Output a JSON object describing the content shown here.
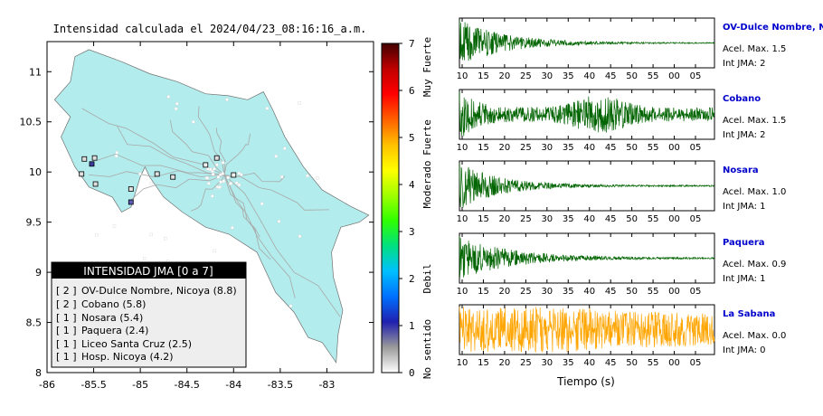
{
  "map": {
    "title": "Intensidad calculada el 2024/04/23_08:16:16_a.m.",
    "xlim": [
      -86,
      -82.5
    ],
    "ylim": [
      8,
      11.3
    ],
    "xticks": [
      "-86",
      "-85.5",
      "-85",
      "-84.5",
      "-84",
      "-83.5",
      "-83"
    ],
    "xtick_values": [
      -86,
      -85.5,
      -85,
      -84.5,
      -84,
      -83.5,
      -83
    ],
    "yticks": [
      "8",
      "8.5",
      "9",
      "9.5",
      "10",
      "10.5",
      "11"
    ],
    "ytick_values": [
      8,
      8.5,
      9,
      9.5,
      10,
      10.5,
      11
    ],
    "land_color": "#b3ecec",
    "stations": [
      {
        "lon": -85.52,
        "lat": 10.08,
        "jma": 2,
        "color": "#3c3ca0"
      },
      {
        "lon": -85.1,
        "lat": 9.7,
        "jma": 2,
        "color": "#5a5ab8"
      },
      {
        "lon": -85.6,
        "lat": 10.13,
        "jma": 1,
        "color": "#e0e0e0"
      },
      {
        "lon": -85.49,
        "lat": 10.14,
        "jma": 1,
        "color": "#e0e0e0"
      },
      {
        "lon": -85.63,
        "lat": 9.98,
        "jma": 1,
        "color": "#e0e0e0"
      },
      {
        "lon": -85.48,
        "lat": 9.88,
        "jma": 1,
        "color": "#e0e0e0"
      },
      {
        "lon": -85.1,
        "lat": 9.83,
        "jma": 1,
        "color": "#e0e0e0"
      },
      {
        "lon": -84.82,
        "lat": 9.98,
        "jma": 1,
        "color": "#e0e0e0"
      },
      {
        "lon": -84.65,
        "lat": 9.95,
        "jma": 1,
        "color": "#e0e0e0"
      },
      {
        "lon": -84.18,
        "lat": 10.14,
        "jma": 1,
        "color": "#e0e0e0"
      },
      {
        "lon": -84.3,
        "lat": 10.07,
        "jma": 0,
        "color": "#f0f0f0"
      },
      {
        "lon": -84.0,
        "lat": 9.97,
        "jma": 0,
        "color": "#f0f0f0"
      }
    ]
  },
  "legend": {
    "title": "INTENSIDAD JMA [0 a 7]",
    "rows": [
      {
        "int": "[ 2 ]",
        "label": "OV-Dulce Nombre, Nicoya (8.8)"
      },
      {
        "int": "[ 2 ]",
        "label": "Cobano (5.8)"
      },
      {
        "int": "[ 1 ]",
        "label": "Nosara (5.4)"
      },
      {
        "int": "[ 1 ]",
        "label": "Paquera (2.4)"
      },
      {
        "int": "[ 1 ]",
        "label": "Liceo Santa Cruz (2.5)"
      },
      {
        "int": "[ 1 ]",
        "label": "Hosp. Nicoya (4.2)"
      }
    ]
  },
  "colorbar": {
    "ticks": [
      "0",
      "1",
      "2",
      "3",
      "4",
      "5",
      "6",
      "7"
    ],
    "tick_values": [
      0,
      1,
      2,
      3,
      4,
      5,
      6,
      7
    ],
    "labels": [
      {
        "text": "No sentido",
        "value": 0.5
      },
      {
        "text": "Debil",
        "value": 2
      },
      {
        "text": "Moderado",
        "value": 4
      },
      {
        "text": "Fuerte",
        "value": 5
      },
      {
        "text": "Muy Fuerte",
        "value": 6.5
      }
    ],
    "stops": [
      "#ffffff",
      "#9a9a9a",
      "#2020b0",
      "#0070ff",
      "#00c0ff",
      "#00e080",
      "#30ff00",
      "#a0ff00",
      "#ffff00",
      "#ffc000",
      "#ff6000",
      "#ff0000",
      "#c00000",
      "#400000"
    ]
  },
  "chart_data": {
    "type": "line",
    "xlabel": "Tiempo (s)",
    "xtick_labels": [
      "10",
      "15",
      "20",
      "25",
      "30",
      "35",
      "40",
      "45",
      "50",
      "55",
      "00",
      "05"
    ],
    "series": [
      {
        "name": "OV-Dulce Nombre, Nicoya",
        "max_label": "Acel. Max. 1.5",
        "int_label": "Int JMA: 2",
        "color": "#006400",
        "peak": 1.0,
        "decay": 0.18,
        "base": 0.02,
        "onset": 0.0,
        "bursts": []
      },
      {
        "name": "Cobano",
        "max_label": "Acel. Max. 1.5",
        "int_label": "Int JMA: 2",
        "color": "#006400",
        "peak": 0.9,
        "decay": 0.06,
        "base": 0.3,
        "onset": 0.0,
        "bursts": [
          {
            "at": 0.55,
            "w": 0.12,
            "a": 0.55
          }
        ]
      },
      {
        "name": "Nosara",
        "max_label": "Acel. Max. 1.0",
        "int_label": "Int JMA: 1",
        "color": "#006400",
        "peak": 1.0,
        "decay": 0.16,
        "base": 0.03,
        "onset": 0.0,
        "bursts": []
      },
      {
        "name": "Paquera",
        "max_label": "Acel. Max. 0.9",
        "int_label": "Int JMA: 1",
        "color": "#006400",
        "peak": 0.95,
        "decay": 0.2,
        "base": 0.03,
        "onset": 0.0,
        "bursts": []
      },
      {
        "name": "La Sabana",
        "max_label": "Acel. Max. 0.0",
        "int_label": "Int JMA: 0",
        "color": "#ffa500",
        "peak": 0.9,
        "decay": 0.5,
        "base": 0.55,
        "onset": 0.08,
        "bursts": []
      }
    ]
  },
  "style": {
    "station_name_color": "#0000cc",
    "trace_bg": "#ffffff"
  }
}
